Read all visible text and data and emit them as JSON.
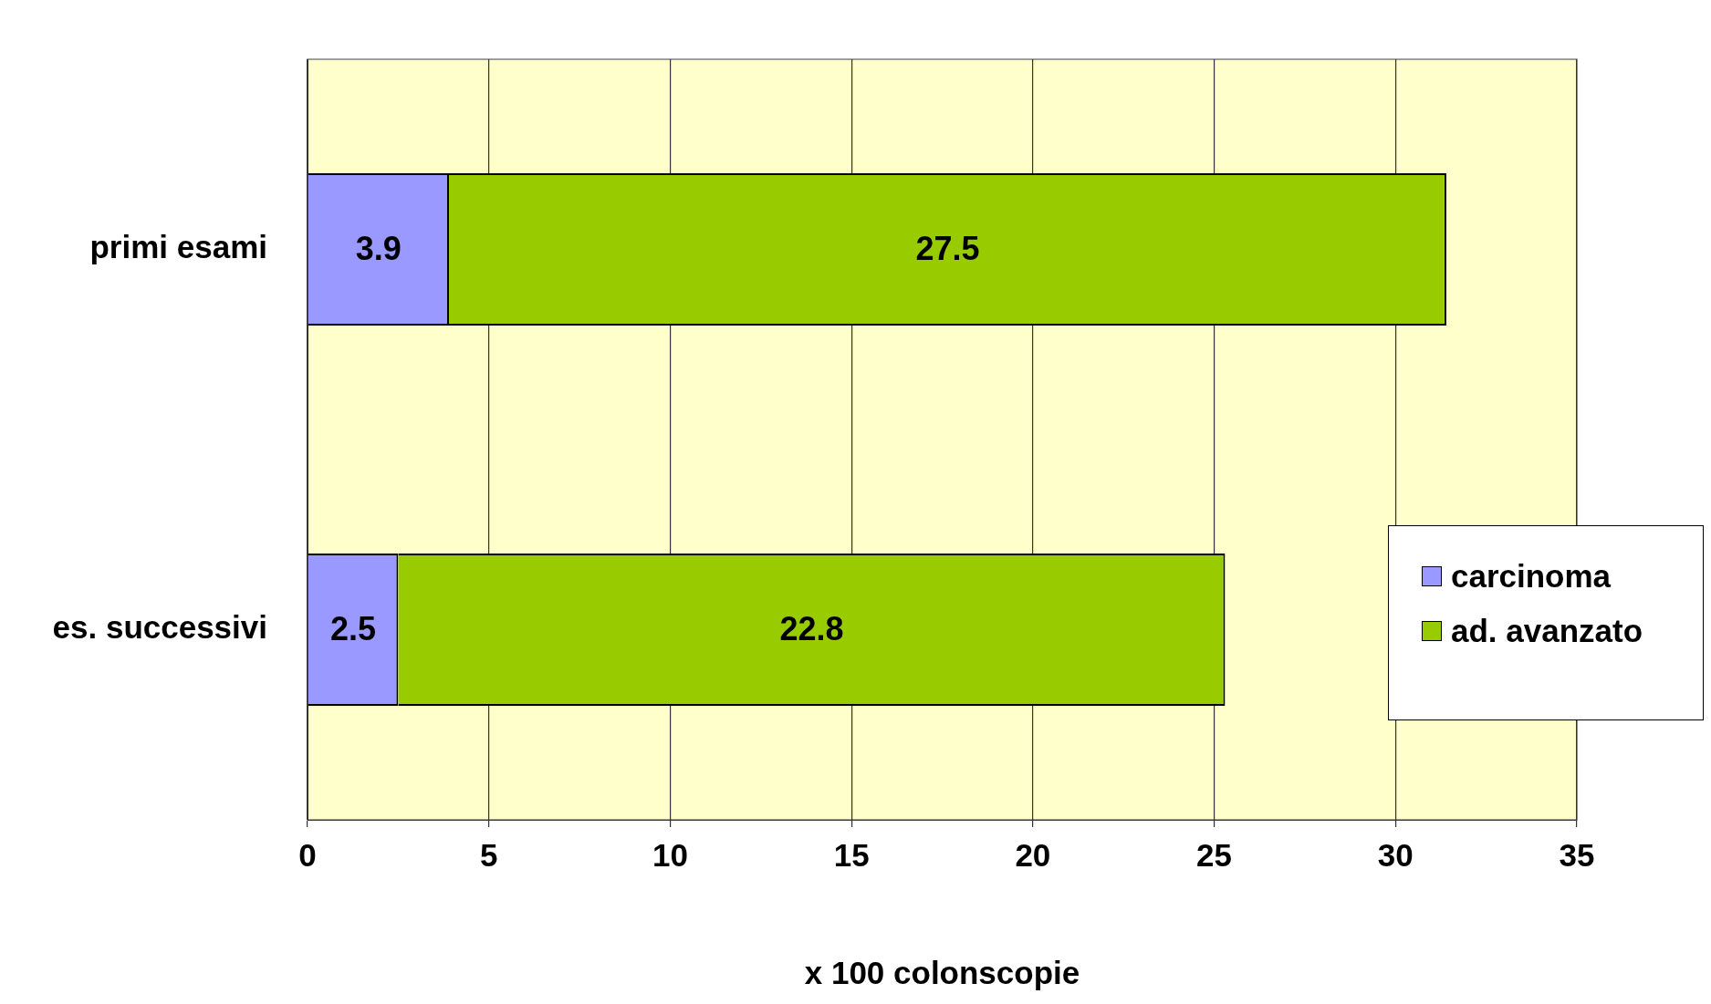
{
  "chart_data": {
    "type": "bar",
    "orientation": "horizontal",
    "stacked": true,
    "xlabel": "x 100 colonscopie",
    "categories": [
      "primi esami",
      "es. successivi"
    ],
    "series": [
      {
        "name": "carcinoma",
        "color": "#9999ff",
        "values": [
          3.9,
          2.5
        ]
      },
      {
        "name": "ad. avanzato",
        "color": "#99cc00",
        "values": [
          27.5,
          22.8
        ]
      }
    ],
    "xlim": [
      0,
      35
    ],
    "xticks": [
      0,
      5,
      10,
      15,
      20,
      25,
      30,
      35
    ],
    "grid": "x",
    "legend": "right",
    "data_labels": true
  }
}
